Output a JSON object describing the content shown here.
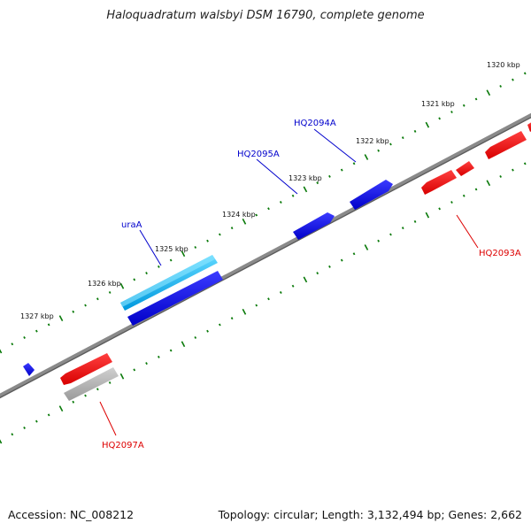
{
  "title": "Haloquadratum walsbyi DSM 16790, complete genome",
  "footer": {
    "accession": "Accession: NC_008212",
    "summary": "Topology: circular; Length: 3,132,494 bp; Genes: 2,662"
  },
  "colors": {
    "backbone": "#808080",
    "tick": "#0a7a0a",
    "forward_gene": "#0000ee",
    "forward_highlight": "#00bfff",
    "reverse_gene": "#ff0000",
    "other_feature": "#b0b0b0",
    "forward_label": "#0000cc",
    "reverse_label": "#dd0000"
  },
  "ticks": [
    {
      "label": "1320 kbp"
    },
    {
      "label": "1321 kbp"
    },
    {
      "label": "1322 kbp"
    },
    {
      "label": "1323 kbp"
    },
    {
      "label": "1324 kbp"
    },
    {
      "label": "1325 kbp"
    },
    {
      "label": "1326 kbp"
    },
    {
      "label": "1327 kbp"
    }
  ],
  "gene_labels": [
    {
      "name": "HQ2094A",
      "strand": "forward"
    },
    {
      "name": "HQ2095A",
      "strand": "forward"
    },
    {
      "name": "uraA",
      "strand": "forward"
    },
    {
      "name": "HQ2093A",
      "strand": "reverse"
    },
    {
      "name": "HQ2097A",
      "strand": "reverse"
    }
  ]
}
